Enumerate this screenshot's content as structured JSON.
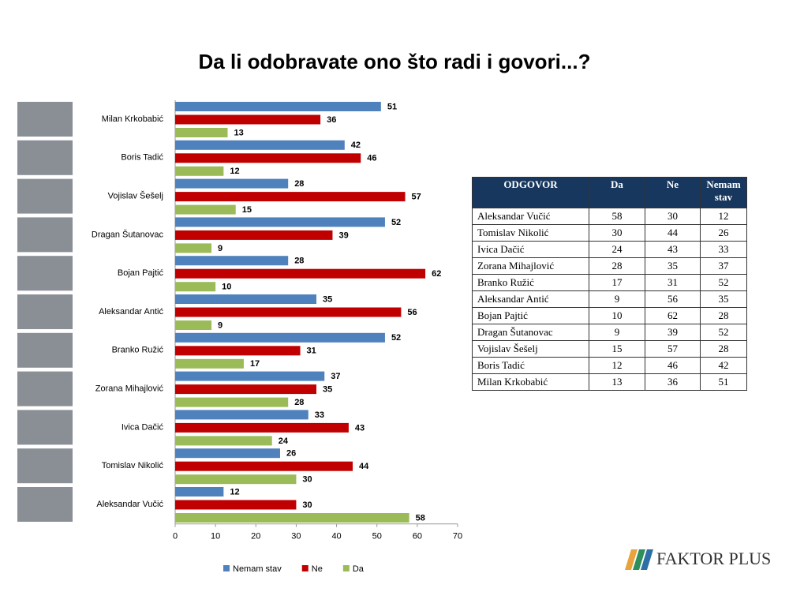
{
  "chart_data": {
    "type": "hbar",
    "title": "Da li odobravate ono što radi i govori...?",
    "categories": [
      "Milan Krkobabić",
      "Boris Tadić",
      "Vojislav Šešelj",
      "Dragan Šutanovac",
      "Bojan Pajtić",
      "Aleksandar Antić",
      "Branko Ružić",
      "Zorana Mihajlović",
      "Ivica Dačić",
      "Tomislav Nikolić",
      "Aleksandar Vučić"
    ],
    "series": [
      {
        "name": "Nemam stav",
        "color": "#4f81bd",
        "values": [
          51,
          42,
          28,
          52,
          28,
          35,
          52,
          37,
          33,
          26,
          12
        ]
      },
      {
        "name": "Ne",
        "color": "#c00000",
        "values": [
          36,
          46,
          57,
          39,
          62,
          56,
          31,
          35,
          43,
          44,
          30
        ]
      },
      {
        "name": "Da",
        "color": "#9bbb59",
        "values": [
          13,
          12,
          15,
          9,
          10,
          9,
          17,
          28,
          24,
          30,
          58
        ]
      }
    ],
    "xlim": [
      0,
      70
    ],
    "xticks": [
      0,
      10,
      20,
      30,
      40,
      50,
      60,
      70
    ],
    "legend": "bottom"
  },
  "table": {
    "header": [
      "ODGOVOR",
      "Da",
      "Ne",
      "Nemam stav"
    ],
    "rows": [
      [
        "Aleksandar Vučić",
        "58",
        "30",
        "12"
      ],
      [
        "Tomislav Nikolić",
        "30",
        "44",
        "26"
      ],
      [
        "Ivica Dačić",
        "24",
        "43",
        "33"
      ],
      [
        "Zorana Mihajlović",
        "28",
        "35",
        "37"
      ],
      [
        "Branko Ružić",
        "17",
        "31",
        "52"
      ],
      [
        "Aleksandar Antić",
        "9",
        "56",
        "35"
      ],
      [
        "Bojan Pajtić",
        "10",
        "62",
        "28"
      ],
      [
        "Dragan Šutanovac",
        "9",
        "39",
        "52"
      ],
      [
        "Vojislav Šešelj",
        "15",
        "57",
        "28"
      ],
      [
        "Boris Tadić",
        "12",
        "46",
        "42"
      ],
      [
        "Milan Krkobabić",
        "13",
        "36",
        "51"
      ]
    ]
  },
  "logo": "FAKTOR PLUS"
}
